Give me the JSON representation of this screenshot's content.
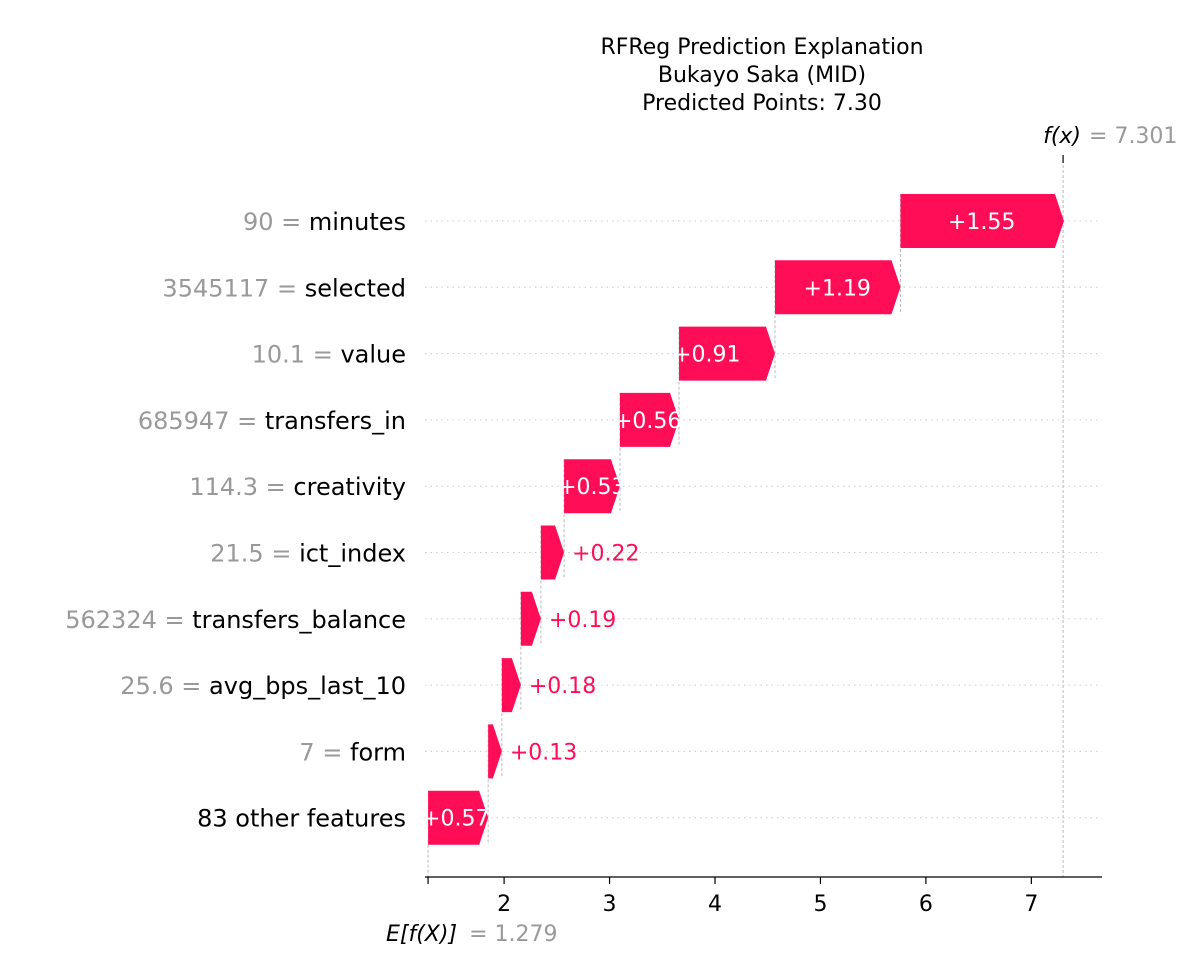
{
  "chart_data": {
    "type": "waterfall",
    "title": "RFReg Prediction Explanation",
    "subtitle": "Bukayo Saka (MID)",
    "subtitle2": "Predicted Points: 7.30",
    "base_value": 1.279,
    "base_value_label": "E[f(X)]",
    "base_value_text": "= 1.279",
    "output_value": 7.301,
    "output_value_label": "f(x)",
    "output_value_text": "= 7.301",
    "xlim": [
      1.25,
      7.67
    ],
    "xticks": [
      2,
      3,
      4,
      5,
      6,
      7
    ],
    "grid": false,
    "colors": {
      "positive": "#ff0d57",
      "feature_value": "#999999",
      "label": "#000000",
      "line": "#bbbbbb"
    },
    "features": [
      {
        "value": "90",
        "name": "minutes",
        "contribution": 1.55,
        "label": "+1.55"
      },
      {
        "value": "3545117",
        "name": "selected",
        "contribution": 1.19,
        "label": "+1.19"
      },
      {
        "value": "10.1",
        "name": "value",
        "contribution": 0.91,
        "label": "+0.91"
      },
      {
        "value": "685947",
        "name": "transfers_in",
        "contribution": 0.56,
        "label": "+0.56"
      },
      {
        "value": "114.3",
        "name": "creativity",
        "contribution": 0.53,
        "label": "+0.53"
      },
      {
        "value": "21.5",
        "name": "ict_index",
        "contribution": 0.22,
        "label": "+0.22"
      },
      {
        "value": "562324",
        "name": "transfers_balance",
        "contribution": 0.19,
        "label": "+0.19"
      },
      {
        "value": "25.6",
        "name": "avg_bps_last_10",
        "contribution": 0.18,
        "label": "+0.18"
      },
      {
        "value": "7",
        "name": "form",
        "contribution": 0.13,
        "label": "+0.13"
      },
      {
        "value": "",
        "name": "83 other features",
        "contribution": 0.57,
        "label": "+0.57"
      }
    ]
  }
}
